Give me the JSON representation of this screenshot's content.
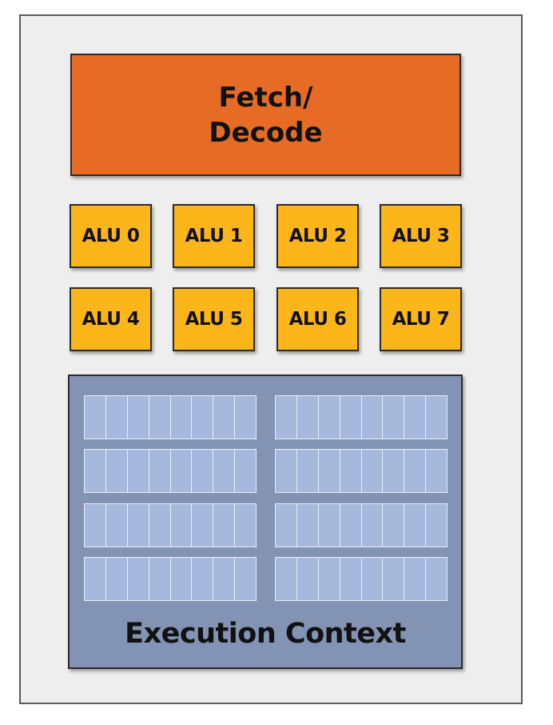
{
  "fetch_decode": {
    "line1": "Fetch/",
    "line2": "Decode",
    "color": "#e66c25"
  },
  "alus": {
    "color": "#fcb61a",
    "labels": [
      "ALU 0",
      "ALU 1",
      "ALU 2",
      "ALU 3",
      "ALU 4",
      "ALU 5",
      "ALU 6",
      "ALU 7"
    ]
  },
  "execution_context": {
    "label": "Execution Context",
    "color": "#8293b3",
    "register_color": "#a6b9dc"
  }
}
